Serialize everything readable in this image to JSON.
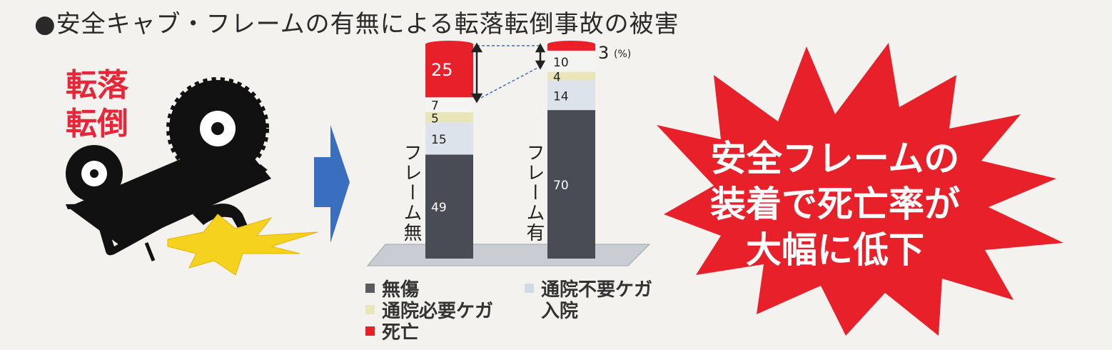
{
  "title": "●安全キャブ・フレームの有無による転落転倒事故の被害",
  "illustration": {
    "label_line1": "転落",
    "label_line2": "転倒"
  },
  "callout": {
    "line1": "安全フレームの",
    "line2": "装着で死亡率が",
    "line3": "大幅に低下",
    "color": "#e8202a"
  },
  "chart_data": {
    "type": "bar",
    "stacked": true,
    "unit": "(%)",
    "categories": [
      "フレーム無",
      "フレーム有"
    ],
    "series": [
      {
        "name": "無傷",
        "values": [
          49,
          70
        ],
        "color": "#4a4c55"
      },
      {
        "name": "通院不要ケガ",
        "values": [
          15,
          14
        ],
        "color": "#dde3ea"
      },
      {
        "name": "通院必要ケガ",
        "values": [
          5,
          4
        ],
        "color": "#e8e6b8"
      },
      {
        "name": "入院",
        "values": [
          7,
          10
        ],
        "color": "#f4f4f2"
      },
      {
        "name": "死亡",
        "values": [
          25,
          3
        ],
        "color": "#e8202a"
      }
    ],
    "legend": [
      "無傷",
      "通院不要ケガ",
      "通院必要ケガ",
      "入院",
      "死亡"
    ],
    "legend_placement": "bottom"
  }
}
